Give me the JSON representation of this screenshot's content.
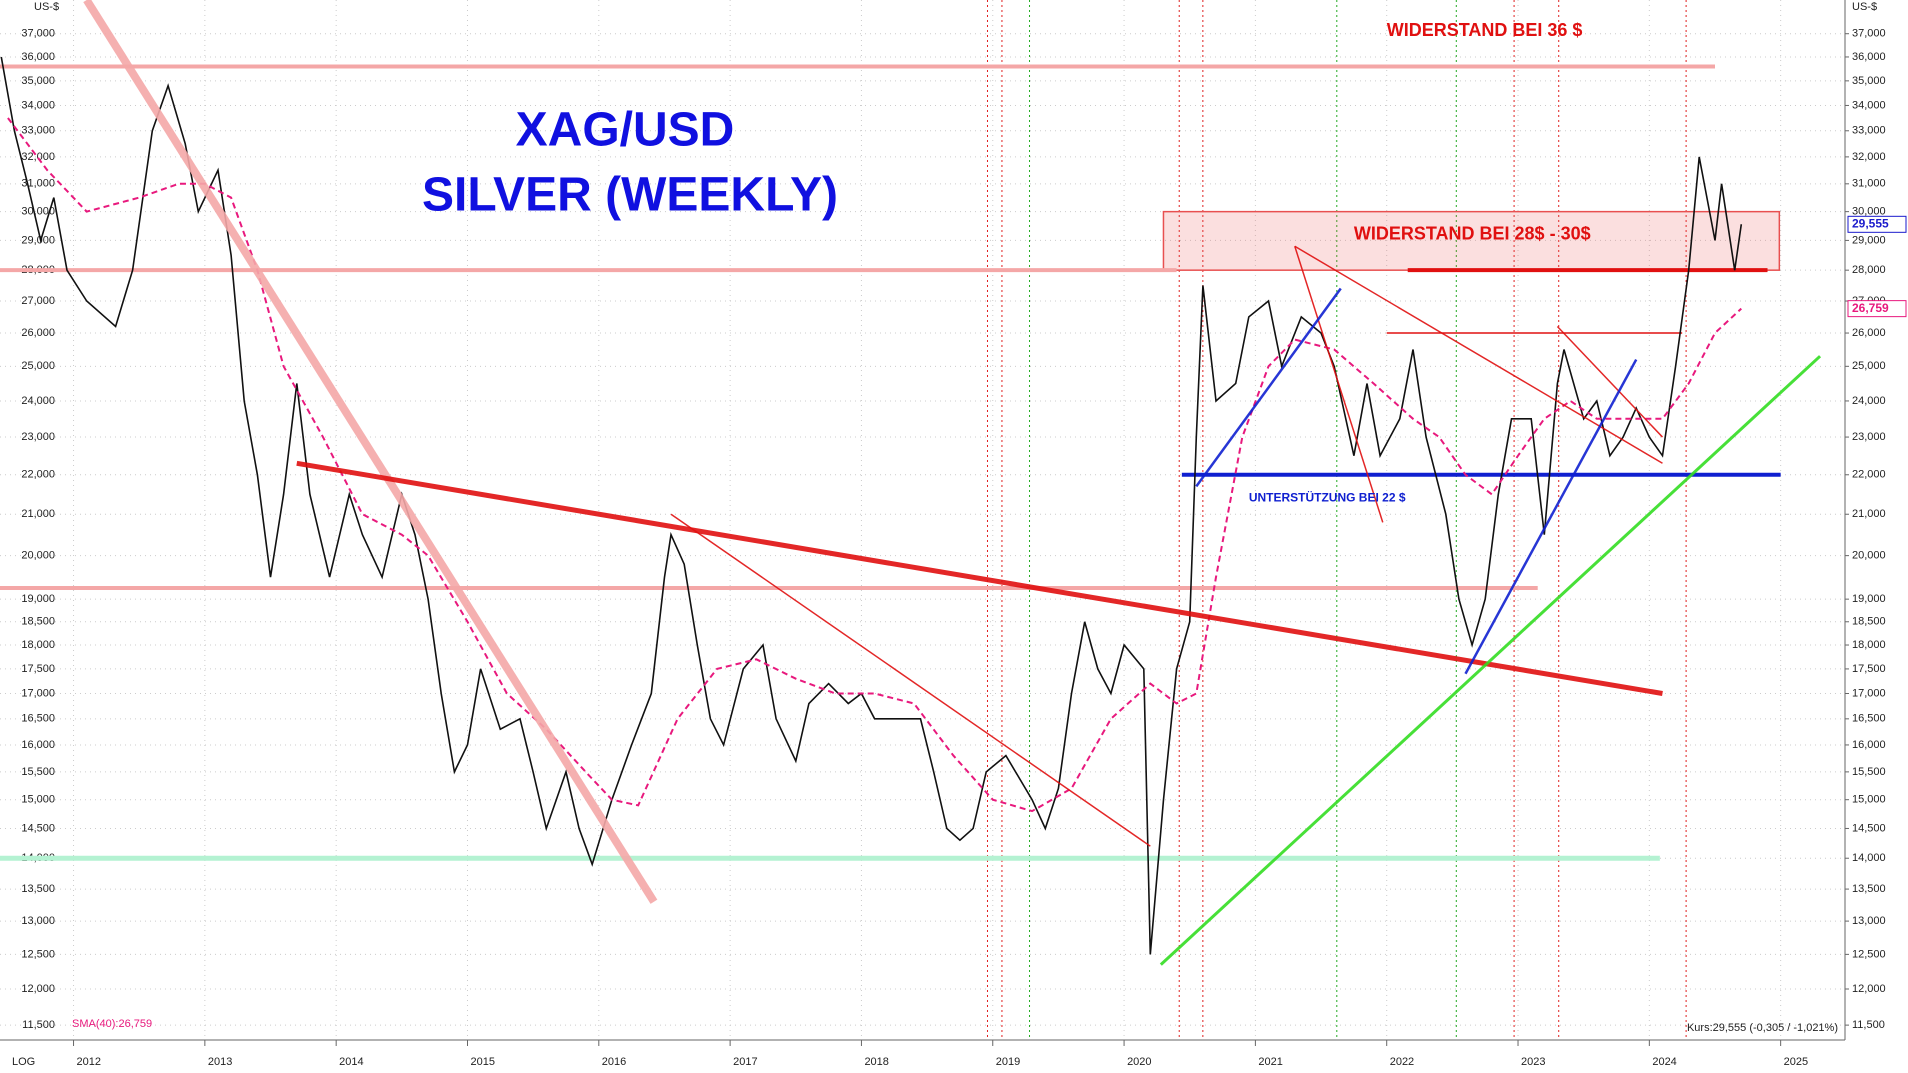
{
  "chart_data": {
    "type": "line",
    "title": "XAG/USD",
    "subtitle": "SILVER (WEEKLY)",
    "y_unit_left": "US-$",
    "y_unit_right": "US-$",
    "scale_label": "LOG",
    "log_scale": true,
    "grid": true,
    "xlim": [
      2011.44,
      2025.49
    ],
    "ylim": [
      11300,
      38500
    ],
    "xticks": [
      2012,
      2013,
      2014,
      2015,
      2016,
      2017,
      2018,
      2019,
      2020,
      2021,
      2022,
      2023,
      2024,
      2025
    ],
    "yticks": [
      {
        "value": 11500,
        "label": "11,500"
      },
      {
        "value": 12000,
        "label": "12,000"
      },
      {
        "value": 12500,
        "label": "12,500"
      },
      {
        "value": 13000,
        "label": "13,000"
      },
      {
        "value": 13500,
        "label": "13,500"
      },
      {
        "value": 14000,
        "label": "14,000"
      },
      {
        "value": 14500,
        "label": "14,500"
      },
      {
        "value": 15000,
        "label": "15,000"
      },
      {
        "value": 15500,
        "label": "15,500"
      },
      {
        "value": 16000,
        "label": "16,000"
      },
      {
        "value": 16500,
        "label": "16,500"
      },
      {
        "value": 17000,
        "label": "17,000"
      },
      {
        "value": 17500,
        "label": "17,500"
      },
      {
        "value": 18000,
        "label": "18,000"
      },
      {
        "value": 18500,
        "label": "18,500"
      },
      {
        "value": 19000,
        "label": "19,000"
      },
      {
        "value": 20000,
        "label": "20,000"
      },
      {
        "value": 21000,
        "label": "21,000"
      },
      {
        "value": 22000,
        "label": "22,000"
      },
      {
        "value": 23000,
        "label": "23,000"
      },
      {
        "value": 24000,
        "label": "24,000"
      },
      {
        "value": 25000,
        "label": "25,000"
      },
      {
        "value": 26000,
        "label": "26,000"
      },
      {
        "value": 27000,
        "label": "27,000"
      },
      {
        "value": 28000,
        "label": "28,000"
      },
      {
        "value": 29000,
        "label": "29,000"
      },
      {
        "value": 30000,
        "label": "30,000"
      },
      {
        "value": 31000,
        "label": "31,000"
      },
      {
        "value": 32000,
        "label": "32,000"
      },
      {
        "value": 33000,
        "label": "33,000"
      },
      {
        "value": 34000,
        "label": "34,000"
      },
      {
        "value": 35000,
        "label": "35,000"
      },
      {
        "value": 36000,
        "label": "36,000"
      },
      {
        "value": 37000,
        "label": "37,000"
      }
    ],
    "series": [
      {
        "name": "Kurs:29,555 (-0,305 / -1,021%)",
        "color": "#111111",
        "dash": false,
        "x": [
          2011.45,
          2011.55,
          2011.65,
          2011.75,
          2011.85,
          2011.95,
          2012.1,
          2012.32,
          2012.45,
          2012.6,
          2012.72,
          2012.85,
          2012.95,
          2013.1,
          2013.2,
          2013.3,
          2013.4,
          2013.5,
          2013.6,
          2013.7,
          2013.8,
          2013.95,
          2014.1,
          2014.2,
          2014.35,
          2014.5,
          2014.6,
          2014.7,
          2014.8,
          2014.9,
          2015.0,
          2015.1,
          2015.25,
          2015.4,
          2015.5,
          2015.6,
          2015.75,
          2015.85,
          2015.95,
          2016.1,
          2016.25,
          2016.4,
          2016.5,
          2016.55,
          2016.65,
          2016.75,
          2016.85,
          2016.95,
          2017.1,
          2017.25,
          2017.35,
          2017.5,
          2017.6,
          2017.75,
          2017.9,
          2018.0,
          2018.1,
          2018.3,
          2018.45,
          2018.55,
          2018.65,
          2018.75,
          2018.85,
          2018.95,
          2019.1,
          2019.3,
          2019.4,
          2019.5,
          2019.6,
          2019.7,
          2019.8,
          2019.9,
          2020.0,
          2020.15,
          2020.2,
          2020.3,
          2020.4,
          2020.5,
          2020.55,
          2020.6,
          2020.7,
          2020.85,
          2020.95,
          2021.1,
          2021.2,
          2021.35,
          2021.5,
          2021.6,
          2021.75,
          2021.85,
          2021.95,
          2022.1,
          2022.2,
          2022.3,
          2022.45,
          2022.55,
          2022.65,
          2022.75,
          2022.85,
          2022.95,
          2023.1,
          2023.2,
          2023.3,
          2023.35,
          2023.5,
          2023.6,
          2023.7,
          2023.8,
          2023.9,
          2024.0,
          2024.1,
          2024.2,
          2024.3,
          2024.38,
          2024.5,
          2024.55,
          2024.65,
          2024.7
        ],
        "values": [
          36000,
          33000,
          31000,
          29000,
          30500,
          28000,
          27000,
          26200,
          28000,
          33000,
          34800,
          32500,
          30000,
          31500,
          28500,
          24000,
          22000,
          19500,
          21500,
          24500,
          21500,
          19500,
          21500,
          20500,
          19500,
          21500,
          20500,
          19000,
          17000,
          15500,
          16000,
          17500,
          16300,
          16500,
          15500,
          14500,
          15500,
          14500,
          13900,
          15000,
          16000,
          17000,
          19500,
          20500,
          19800,
          18000,
          16500,
          16000,
          17500,
          18000,
          16500,
          15700,
          16800,
          17200,
          16800,
          17000,
          16500,
          16500,
          16500,
          15500,
          14500,
          14300,
          14500,
          15500,
          15800,
          15000,
          14500,
          15200,
          17000,
          18500,
          17500,
          17000,
          18000,
          17500,
          12500,
          15000,
          17500,
          18500,
          23000,
          27500,
          24000,
          24500,
          26500,
          27000,
          25000,
          26500,
          26000,
          25000,
          22500,
          24500,
          22500,
          23500,
          25500,
          23000,
          21000,
          19000,
          18000,
          19000,
          21500,
          23500,
          23500,
          20500,
          24500,
          25500,
          23500,
          24000,
          22500,
          23000,
          23800,
          23000,
          22500,
          25000,
          28000,
          32000,
          29000,
          31000,
          28000,
          29555
        ]
      },
      {
        "name": "SMA(40):26,759",
        "color": "#e8197d",
        "dash": true,
        "x": [
          2011.5,
          2011.8,
          2012.1,
          2012.5,
          2012.8,
          2013.0,
          2013.2,
          2013.4,
          2013.6,
          2013.9,
          2014.2,
          2014.5,
          2014.7,
          2015.0,
          2015.3,
          2015.6,
          2015.9,
          2016.1,
          2016.3,
          2016.6,
          2016.9,
          2017.2,
          2017.5,
          2017.8,
          2018.1,
          2018.4,
          2018.7,
          2019.0,
          2019.3,
          2019.6,
          2019.9,
          2020.2,
          2020.4,
          2020.55,
          2020.7,
          2020.9,
          2021.1,
          2021.3,
          2021.6,
          2021.9,
          2022.2,
          2022.4,
          2022.6,
          2022.8,
          2023.0,
          2023.2,
          2023.4,
          2023.6,
          2023.9,
          2024.1,
          2024.3,
          2024.5,
          2024.7
        ],
        "values": [
          33500,
          31500,
          30000,
          30500,
          31000,
          31000,
          30500,
          28000,
          25000,
          23000,
          21000,
          20500,
          20000,
          18500,
          17000,
          16300,
          15500,
          15000,
          14900,
          16500,
          17500,
          17700,
          17300,
          17000,
          17000,
          16800,
          15800,
          15000,
          14800,
          15200,
          16500,
          17200,
          16800,
          17000,
          19500,
          23000,
          25000,
          25800,
          25500,
          24500,
          23500,
          23000,
          22000,
          21500,
          22500,
          23500,
          24000,
          23500,
          23500,
          23500,
          24500,
          26000,
          26759
        ]
      }
    ],
    "last_labels": [
      {
        "value": 29555,
        "label": "29,555",
        "color": "#1a1acc"
      },
      {
        "value": 26759,
        "label": "26,759",
        "color": "#e8197d"
      }
    ],
    "zone": {
      "x": [
        2020.3,
        2024.99
      ],
      "y": [
        28000,
        30000
      ],
      "color": "#e85050"
    },
    "levels": [
      {
        "x": [
          2011.44,
          2024.5
        ],
        "value": 35600,
        "color": "#f4a7a7",
        "width": 4
      },
      {
        "x": [
          2011.44,
          2020.4
        ],
        "value": 28000,
        "color": "#f4a7a7",
        "width": 4
      },
      {
        "x": [
          2011.44,
          2023.15
        ],
        "value": 19250,
        "color": "#f4a7a7",
        "width": 4
      },
      {
        "x": [
          2011.44,
          2024.08
        ],
        "value": 14000,
        "color": "#b4f2d2",
        "width": 5
      },
      {
        "x": [
          2022.16,
          2024.9
        ],
        "value": 28000,
        "color": "#e01010",
        "width": 4
      },
      {
        "x": [
          2020.44,
          2025.0
        ],
        "value": 22000,
        "color": "#1020d0",
        "width": 4
      },
      {
        "x": [
          2022.0,
          2024.25
        ],
        "value": 26000,
        "color": "#e01010",
        "width": 1.5
      }
    ],
    "trendlines": [
      {
        "x": [
          2012.1,
          2016.42
        ],
        "values": [
          38500,
          13300
        ],
        "color": "#f4a7a7",
        "width": 8
      },
      {
        "x": [
          2013.7,
          2024.1
        ],
        "values": [
          22300,
          17000
        ],
        "color": "#e01010",
        "width": 5
      },
      {
        "x": [
          2020.28,
          2025.3
        ],
        "values": [
          12350,
          25300
        ],
        "color": "#33dd22",
        "width": 3
      },
      {
        "x": [
          2016.55,
          2020.2
        ],
        "values": [
          21000,
          14200
        ],
        "color": "#e01010",
        "width": 1.5
      },
      {
        "x": [
          2021.3,
          2024.1
        ],
        "values": [
          28800,
          22300
        ],
        "color": "#e01010",
        "width": 1.5
      },
      {
        "x": [
          2021.3,
          2021.97
        ],
        "values": [
          28800,
          20800
        ],
        "color": "#e01010",
        "width": 1.5
      },
      {
        "x": [
          2023.3,
          2024.1
        ],
        "values": [
          26200,
          23000
        ],
        "color": "#e01010",
        "width": 1.5
      },
      {
        "x": [
          2020.55,
          2021.65
        ],
        "values": [
          21700,
          27400
        ],
        "color": "#1020d0",
        "width": 2.5
      },
      {
        "x": [
          2022.6,
          2023.9
        ],
        "values": [
          17400,
          25200
        ],
        "color": "#1020d0",
        "width": 2.5
      }
    ],
    "red_markers": [
      2018.96,
      2019.07,
      2020.42,
      2020.6,
      2022.97,
      2023.31,
      2024.28
    ],
    "green_markers": [
      2019.28,
      2021.62,
      2022.53
    ],
    "annotations": [
      {
        "text": "WIDERSTAND BEI 36 $",
        "x": 2022.0,
        "y": 37100,
        "color": "#e01010",
        "size": 18
      },
      {
        "text": "WIDERSTAND BEI 28$ - 30$",
        "x": 2021.75,
        "y": 29200,
        "color": "#e01010",
        "size": 18
      },
      {
        "text": "UNTERSTÜTZUNG BEI 22 $",
        "x": 2020.95,
        "y": 21400,
        "color": "#1020d0",
        "size": 12
      }
    ]
  }
}
